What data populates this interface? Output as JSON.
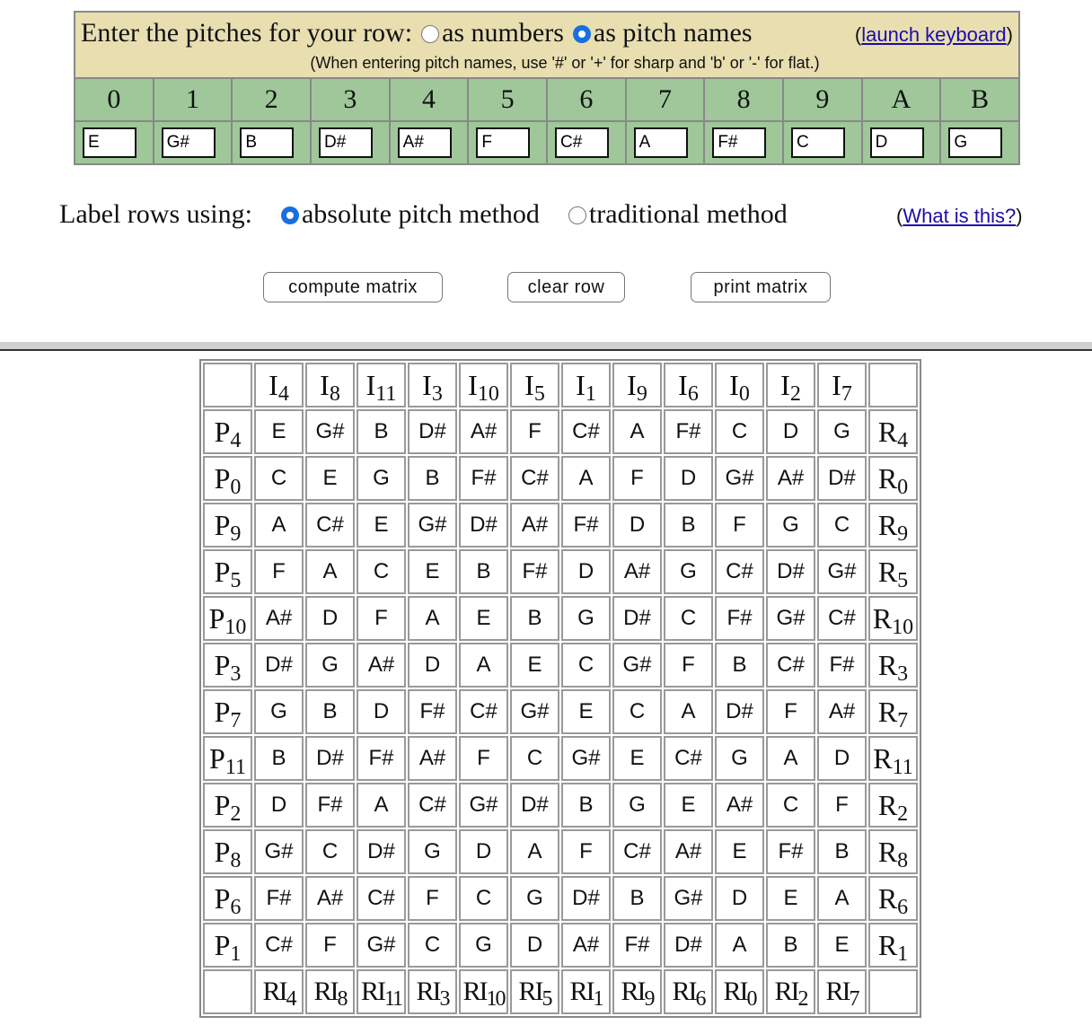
{
  "entry": {
    "title": "Enter the pitches for your row:",
    "opt_numbers": "as numbers",
    "opt_names": "as pitch names",
    "selected": "as pitch names",
    "launch_open": "(",
    "launch": "launch keyboard",
    "launch_close": ")",
    "note": "(When entering pitch names, use '#' or '+' for sharp and 'b' or '-' for flat.)",
    "indices": [
      "0",
      "1",
      "2",
      "3",
      "4",
      "5",
      "6",
      "7",
      "8",
      "9",
      "A",
      "B"
    ],
    "pitches": [
      "E",
      "G#",
      "B",
      "D#",
      "A#",
      "F",
      "C#",
      "A",
      "F#",
      "C",
      "D",
      "G"
    ]
  },
  "labeling": {
    "label": "Label rows using:",
    "opt_absolute": "absolute pitch method",
    "opt_traditional": "traditional method",
    "selected": "absolute pitch method",
    "what_open": "(",
    "what": "What is this?",
    "what_close": ")"
  },
  "buttons": {
    "compute": "compute matrix",
    "clear": "clear row",
    "print": "print matrix"
  },
  "matrix": {
    "columns": [
      "4",
      "8",
      "11",
      "3",
      "10",
      "5",
      "1",
      "9",
      "6",
      "0",
      "2",
      "7"
    ],
    "rows": [
      {
        "n": "4",
        "cells": [
          "E",
          "G#",
          "B",
          "D#",
          "A#",
          "F",
          "C#",
          "A",
          "F#",
          "C",
          "D",
          "G"
        ]
      },
      {
        "n": "0",
        "cells": [
          "C",
          "E",
          "G",
          "B",
          "F#",
          "C#",
          "A",
          "F",
          "D",
          "G#",
          "A#",
          "D#"
        ]
      },
      {
        "n": "9",
        "cells": [
          "A",
          "C#",
          "E",
          "G#",
          "D#",
          "A#",
          "F#",
          "D",
          "B",
          "F",
          "G",
          "C"
        ]
      },
      {
        "n": "5",
        "cells": [
          "F",
          "A",
          "C",
          "E",
          "B",
          "F#",
          "D",
          "A#",
          "G",
          "C#",
          "D#",
          "G#"
        ]
      },
      {
        "n": "10",
        "cells": [
          "A#",
          "D",
          "F",
          "A",
          "E",
          "B",
          "G",
          "D#",
          "C",
          "F#",
          "G#",
          "C#"
        ]
      },
      {
        "n": "3",
        "cells": [
          "D#",
          "G",
          "A#",
          "D",
          "A",
          "E",
          "C",
          "G#",
          "F",
          "B",
          "C#",
          "F#"
        ]
      },
      {
        "n": "7",
        "cells": [
          "G",
          "B",
          "D",
          "F#",
          "C#",
          "G#",
          "E",
          "C",
          "A",
          "D#",
          "F",
          "A#"
        ]
      },
      {
        "n": "11",
        "cells": [
          "B",
          "D#",
          "F#",
          "A#",
          "F",
          "C",
          "G#",
          "E",
          "C#",
          "G",
          "A",
          "D"
        ]
      },
      {
        "n": "2",
        "cells": [
          "D",
          "F#",
          "A",
          "C#",
          "G#",
          "D#",
          "B",
          "G",
          "E",
          "A#",
          "C",
          "F"
        ]
      },
      {
        "n": "8",
        "cells": [
          "G#",
          "C",
          "D#",
          "G",
          "D",
          "A",
          "F",
          "C#",
          "A#",
          "E",
          "F#",
          "B"
        ]
      },
      {
        "n": "6",
        "cells": [
          "F#",
          "A#",
          "C#",
          "F",
          "C",
          "G",
          "D#",
          "B",
          "G#",
          "D",
          "E",
          "A"
        ]
      },
      {
        "n": "1",
        "cells": [
          "C#",
          "F",
          "G#",
          "C",
          "G",
          "D",
          "A#",
          "F#",
          "D#",
          "A",
          "B",
          "E"
        ]
      }
    ],
    "prefix": {
      "inversion": "I",
      "prime": "P",
      "retrograde": "R",
      "retro_inversion": "RI"
    }
  }
}
